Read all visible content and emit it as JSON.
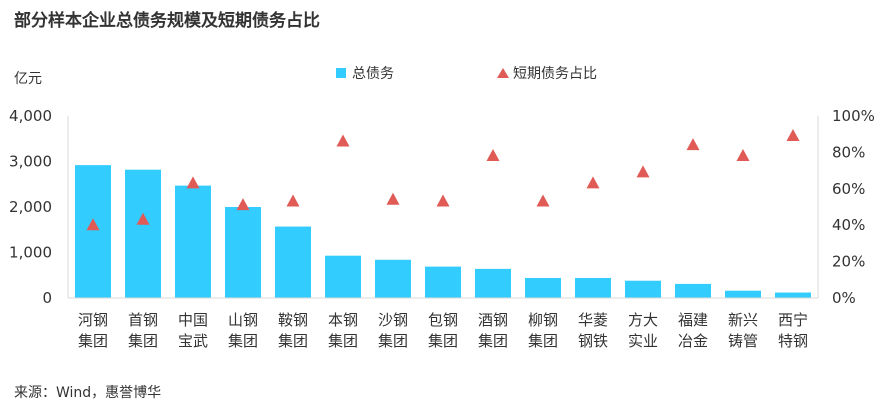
{
  "title": "部分样本企业总债务规模及短期债务占比",
  "source": "来源：Wind，惠誉博华",
  "chart_data": {
    "type": "bar",
    "unit_left": "亿元",
    "categories": [
      [
        "河钢",
        "集团"
      ],
      [
        "首钢",
        "集团"
      ],
      [
        "中国",
        "宝武"
      ],
      [
        "山钢",
        "集团"
      ],
      [
        "鞍钢",
        "集团"
      ],
      [
        "本钢",
        "集团"
      ],
      [
        "沙钢",
        "集团"
      ],
      [
        "包钢",
        "集团"
      ],
      [
        "酒钢",
        "集团"
      ],
      [
        "柳钢",
        "集团"
      ],
      [
        "华菱",
        "钢铁"
      ],
      [
        "方大",
        "实业"
      ],
      [
        "福建",
        "冶金"
      ],
      [
        "新兴",
        "铸管"
      ],
      [
        "西宁",
        "特钢"
      ]
    ],
    "series": [
      {
        "name": "总债务",
        "type": "bar",
        "axis": "left",
        "color": "#33ccff",
        "values": [
          2920,
          2820,
          2470,
          2000,
          1570,
          930,
          840,
          690,
          640,
          440,
          440,
          380,
          310,
          160,
          120
        ]
      },
      {
        "name": "短期债务占比",
        "type": "scatter",
        "marker": "triangle",
        "axis": "right",
        "color": "#e05b55",
        "values": [
          40,
          43,
          63,
          51,
          53,
          86,
          54,
          53,
          78,
          53,
          63,
          69,
          84,
          78,
          89
        ]
      }
    ],
    "ylim_left": [
      0,
      4000
    ],
    "yticks_left": [
      "0",
      "1,000",
      "2,000",
      "3,000",
      "4,000"
    ],
    "ylim_right": [
      0,
      100
    ],
    "yticks_right": [
      "0%",
      "20%",
      "40%",
      "60%",
      "80%",
      "100%"
    ],
    "legend_position": "top-center",
    "grid": false
  }
}
